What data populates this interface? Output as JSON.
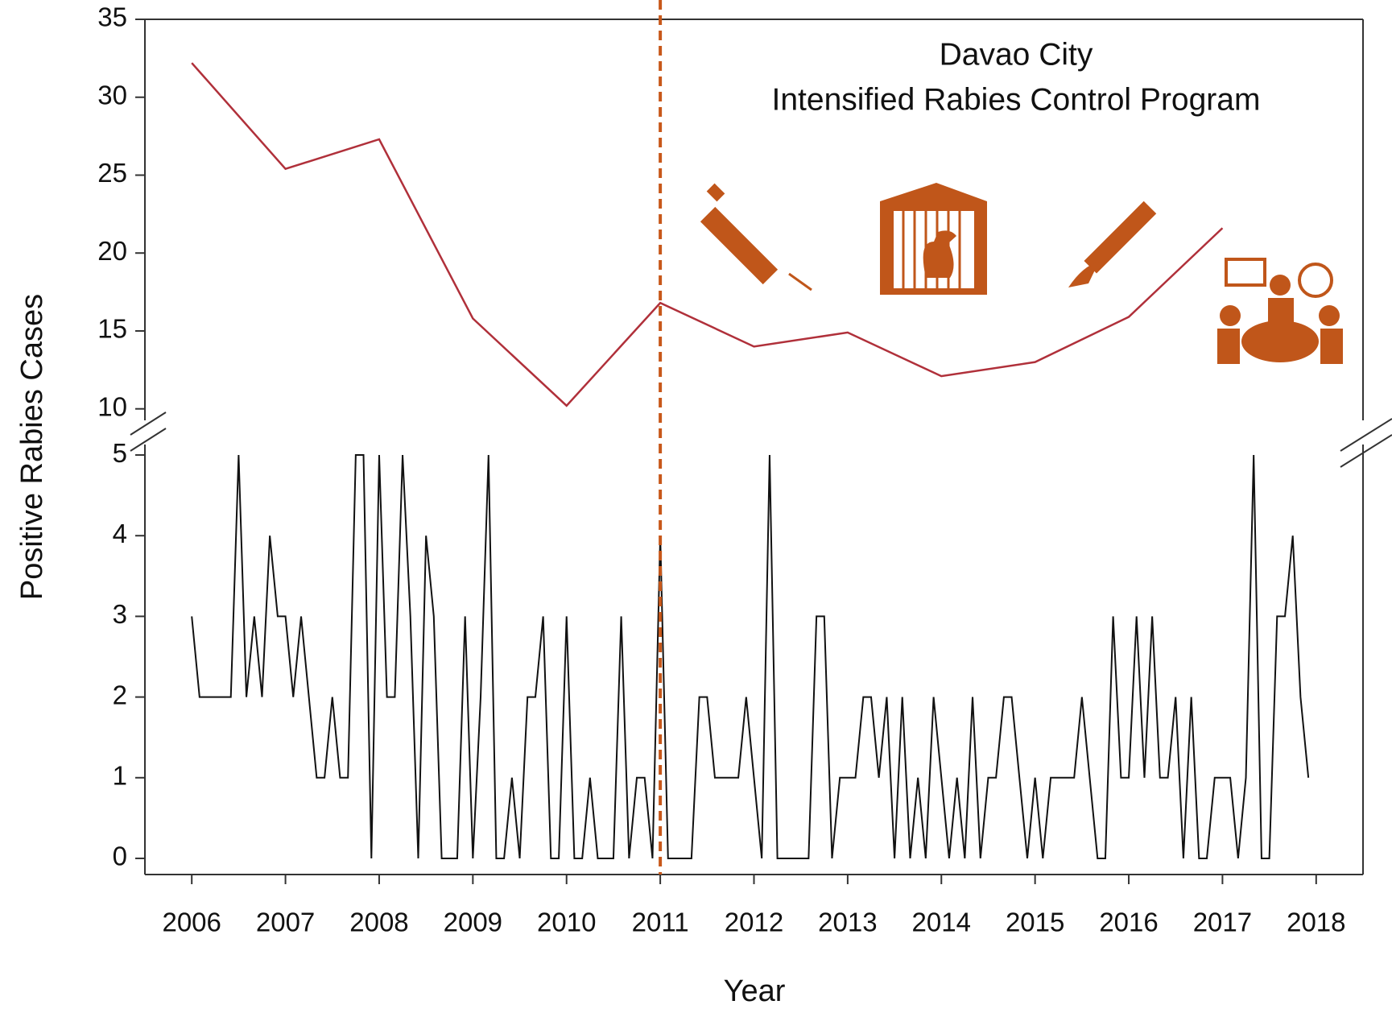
{
  "chart_data": [
    {
      "type": "line",
      "ylabel": "Positive Rabies Cases",
      "annotations": [
        "Davao City",
        "Intensified Rabies Control Program"
      ],
      "vline": 2011,
      "vline_color": "#c8581a",
      "x": [
        2006,
        2007,
        2008,
        2009,
        2010,
        2011,
        2012,
        2013,
        2014,
        2015,
        2016,
        2017
      ],
      "series": [
        {
          "color": "#b0303a",
          "values": [
            32.2,
            25.4,
            27.3,
            15.8,
            10.2,
            16.8,
            14.0,
            14.9,
            12.1,
            13.0,
            15.9,
            21.6
          ]
        }
      ],
      "xlim": [
        2005.5,
        2018.5
      ],
      "ylim": [
        8.9,
        35
      ],
      "yticks": [
        10,
        15,
        20,
        25,
        30,
        35
      ]
    },
    {
      "type": "line",
      "xlabel": "Year",
      "x": [
        2006,
        2006.083,
        2006.167,
        2006.25,
        2006.333,
        2006.417,
        2006.5,
        2006.583,
        2006.667,
        2006.75,
        2006.833,
        2006.917,
        2007,
        2007.083,
        2007.167,
        2007.25,
        2007.333,
        2007.417,
        2007.5,
        2007.583,
        2007.667,
        2007.75,
        2007.833,
        2007.917,
        2008,
        2008.083,
        2008.167,
        2008.25,
        2008.333,
        2008.417,
        2008.5,
        2008.583,
        2008.667,
        2008.75,
        2008.833,
        2008.917,
        2009,
        2009.083,
        2009.167,
        2009.25,
        2009.333,
        2009.417,
        2009.5,
        2009.583,
        2009.667,
        2009.75,
        2009.833,
        2009.917,
        2010,
        2010.083,
        2010.167,
        2010.25,
        2010.333,
        2010.417,
        2010.5,
        2010.583,
        2010.667,
        2010.75,
        2010.833,
        2010.917,
        2011,
        2011.083,
        2011.167,
        2011.25,
        2011.333,
        2011.417,
        2011.5,
        2011.583,
        2011.667,
        2011.75,
        2011.833,
        2011.917,
        2012,
        2012.083,
        2012.167,
        2012.25,
        2012.333,
        2012.417,
        2012.5,
        2012.583,
        2012.667,
        2012.75,
        2012.833,
        2012.917,
        2013,
        2013.083,
        2013.167,
        2013.25,
        2013.333,
        2013.417,
        2013.5,
        2013.583,
        2013.667,
        2013.75,
        2013.833,
        2013.917,
        2014,
        2014.083,
        2014.167,
        2014.25,
        2014.333,
        2014.417,
        2014.5,
        2014.583,
        2014.667,
        2014.75,
        2014.833,
        2014.917,
        2015,
        2015.083,
        2015.167,
        2015.25,
        2015.333,
        2015.417,
        2015.5,
        2015.583,
        2015.667,
        2015.75,
        2015.833,
        2015.917,
        2016,
        2016.083,
        2016.167,
        2016.25,
        2016.333,
        2016.417,
        2016.5,
        2016.583,
        2016.667,
        2016.75,
        2016.833,
        2016.917,
        2017,
        2017.083,
        2017.167,
        2017.25,
        2017.333,
        2017.417,
        2017.5,
        2017.583,
        2017.667,
        2017.75,
        2017.833,
        2017.917
      ],
      "series": [
        {
          "color": "#111111",
          "values": [
            3,
            2,
            2,
            2,
            2,
            2,
            5,
            2,
            3,
            2,
            4,
            3,
            3,
            2,
            3,
            2,
            1,
            1,
            2,
            1,
            1,
            5,
            5,
            0,
            5,
            2,
            2,
            5,
            3,
            0,
            4,
            3,
            0,
            0,
            0,
            3,
            0,
            2,
            5,
            0,
            0,
            1,
            0,
            2,
            2,
            3,
            0,
            0,
            3,
            0,
            0,
            1,
            0,
            0,
            0,
            3,
            0,
            1,
            1,
            0,
            4,
            0,
            0,
            0,
            0,
            2,
            2,
            1,
            1,
            1,
            1,
            2,
            1,
            0,
            5,
            0,
            0,
            0,
            0,
            0,
            3,
            3,
            0,
            1,
            1,
            1,
            2,
            2,
            1,
            2,
            0,
            2,
            0,
            1,
            0,
            2,
            1,
            0,
            1,
            0,
            2,
            0,
            1,
            1,
            2,
            2,
            1,
            0,
            1,
            0,
            1,
            1,
            1,
            1,
            2,
            1,
            0,
            0,
            3,
            1,
            1,
            3,
            1,
            3,
            1,
            1,
            2,
            0,
            2,
            0,
            0,
            1,
            1,
            1,
            0,
            1,
            5,
            0,
            0,
            3,
            3,
            4,
            2,
            1
          ]
        }
      ],
      "xlim": [
        2005.5,
        2018.5
      ],
      "xticks": [
        2006,
        2007,
        2008,
        2009,
        2010,
        2011,
        2012,
        2013,
        2014,
        2015,
        2016,
        2017,
        2018
      ],
      "ylim": [
        -0.2,
        5.25
      ],
      "yticks": [
        0,
        1,
        2,
        3,
        4,
        5
      ]
    }
  ]
}
